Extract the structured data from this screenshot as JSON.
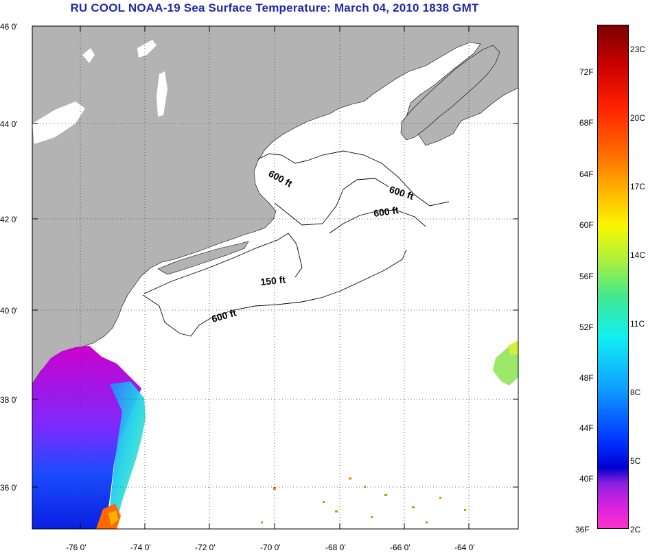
{
  "title": "RU COOL  NOAA-19  Sea Surface Temperature:  March 04, 2010 1838 GMT",
  "lat_labels": [
    "46 0'",
    "44 0'",
    "42 0'",
    "40 0'",
    "38 0'",
    "36 0'"
  ],
  "lon_labels": [
    "-76 0'",
    "-74 0'",
    "-72 0'",
    "-70 0'",
    "-68 0'",
    "-66 0'",
    "-64 0'"
  ],
  "depth_labels": [
    "600 ft",
    "600 ft",
    "600 ft",
    "150 ft",
    "600 ft"
  ],
  "colorbar": {
    "fahrenheit": [
      "72F",
      "68F",
      "64F",
      "60F",
      "56F",
      "52F",
      "48F",
      "44F",
      "40F",
      "36F"
    ],
    "celsius": [
      "23C",
      "20C",
      "17C",
      "14C",
      "11C",
      "8C",
      "5C",
      "2C"
    ]
  },
  "colors": {
    "land": "#b3b3b3",
    "water": "#ffffff",
    "title": "#1f2aa8",
    "sst_cold": "#ff33cc",
    "sst_mid": "#0033ff",
    "sst_warm": "#ff6600"
  }
}
